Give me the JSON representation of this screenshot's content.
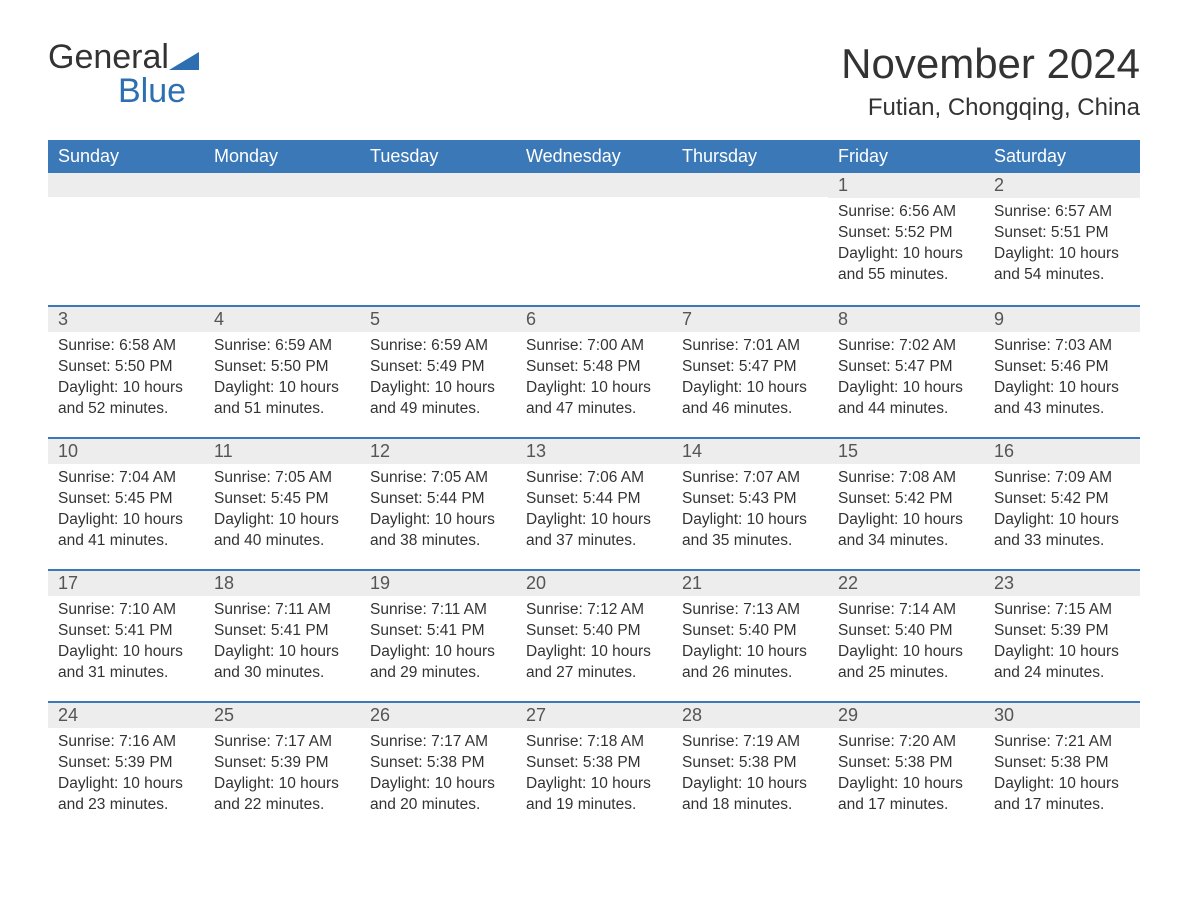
{
  "logo": {
    "word1": "General",
    "word2": "Blue"
  },
  "title": "November 2024",
  "location": "Futian, Chongqing, China",
  "colors": {
    "header_bg": "#3a78b7",
    "header_text": "#ffffff",
    "daynum_bg": "#ededed",
    "row_border": "#3a78b7",
    "body_text": "#333333",
    "logo_blue": "#2d6fb0"
  },
  "columns": [
    "Sunday",
    "Monday",
    "Tuesday",
    "Wednesday",
    "Thursday",
    "Friday",
    "Saturday"
  ],
  "labels": {
    "sunrise": "Sunrise",
    "sunset": "Sunset",
    "daylight": "Daylight"
  },
  "weeks": [
    [
      null,
      null,
      null,
      null,
      null,
      {
        "n": 1,
        "sunrise": "6:56 AM",
        "sunset": "5:52 PM",
        "dl_h": 10,
        "dl_m": 55
      },
      {
        "n": 2,
        "sunrise": "6:57 AM",
        "sunset": "5:51 PM",
        "dl_h": 10,
        "dl_m": 54
      }
    ],
    [
      {
        "n": 3,
        "sunrise": "6:58 AM",
        "sunset": "5:50 PM",
        "dl_h": 10,
        "dl_m": 52
      },
      {
        "n": 4,
        "sunrise": "6:59 AM",
        "sunset": "5:50 PM",
        "dl_h": 10,
        "dl_m": 51
      },
      {
        "n": 5,
        "sunrise": "6:59 AM",
        "sunset": "5:49 PM",
        "dl_h": 10,
        "dl_m": 49
      },
      {
        "n": 6,
        "sunrise": "7:00 AM",
        "sunset": "5:48 PM",
        "dl_h": 10,
        "dl_m": 47
      },
      {
        "n": 7,
        "sunrise": "7:01 AM",
        "sunset": "5:47 PM",
        "dl_h": 10,
        "dl_m": 46
      },
      {
        "n": 8,
        "sunrise": "7:02 AM",
        "sunset": "5:47 PM",
        "dl_h": 10,
        "dl_m": 44
      },
      {
        "n": 9,
        "sunrise": "7:03 AM",
        "sunset": "5:46 PM",
        "dl_h": 10,
        "dl_m": 43
      }
    ],
    [
      {
        "n": 10,
        "sunrise": "7:04 AM",
        "sunset": "5:45 PM",
        "dl_h": 10,
        "dl_m": 41
      },
      {
        "n": 11,
        "sunrise": "7:05 AM",
        "sunset": "5:45 PM",
        "dl_h": 10,
        "dl_m": 40
      },
      {
        "n": 12,
        "sunrise": "7:05 AM",
        "sunset": "5:44 PM",
        "dl_h": 10,
        "dl_m": 38
      },
      {
        "n": 13,
        "sunrise": "7:06 AM",
        "sunset": "5:44 PM",
        "dl_h": 10,
        "dl_m": 37
      },
      {
        "n": 14,
        "sunrise": "7:07 AM",
        "sunset": "5:43 PM",
        "dl_h": 10,
        "dl_m": 35
      },
      {
        "n": 15,
        "sunrise": "7:08 AM",
        "sunset": "5:42 PM",
        "dl_h": 10,
        "dl_m": 34
      },
      {
        "n": 16,
        "sunrise": "7:09 AM",
        "sunset": "5:42 PM",
        "dl_h": 10,
        "dl_m": 33
      }
    ],
    [
      {
        "n": 17,
        "sunrise": "7:10 AM",
        "sunset": "5:41 PM",
        "dl_h": 10,
        "dl_m": 31
      },
      {
        "n": 18,
        "sunrise": "7:11 AM",
        "sunset": "5:41 PM",
        "dl_h": 10,
        "dl_m": 30
      },
      {
        "n": 19,
        "sunrise": "7:11 AM",
        "sunset": "5:41 PM",
        "dl_h": 10,
        "dl_m": 29
      },
      {
        "n": 20,
        "sunrise": "7:12 AM",
        "sunset": "5:40 PM",
        "dl_h": 10,
        "dl_m": 27
      },
      {
        "n": 21,
        "sunrise": "7:13 AM",
        "sunset": "5:40 PM",
        "dl_h": 10,
        "dl_m": 26
      },
      {
        "n": 22,
        "sunrise": "7:14 AM",
        "sunset": "5:40 PM",
        "dl_h": 10,
        "dl_m": 25
      },
      {
        "n": 23,
        "sunrise": "7:15 AM",
        "sunset": "5:39 PM",
        "dl_h": 10,
        "dl_m": 24
      }
    ],
    [
      {
        "n": 24,
        "sunrise": "7:16 AM",
        "sunset": "5:39 PM",
        "dl_h": 10,
        "dl_m": 23
      },
      {
        "n": 25,
        "sunrise": "7:17 AM",
        "sunset": "5:39 PM",
        "dl_h": 10,
        "dl_m": 22
      },
      {
        "n": 26,
        "sunrise": "7:17 AM",
        "sunset": "5:38 PM",
        "dl_h": 10,
        "dl_m": 20
      },
      {
        "n": 27,
        "sunrise": "7:18 AM",
        "sunset": "5:38 PM",
        "dl_h": 10,
        "dl_m": 19
      },
      {
        "n": 28,
        "sunrise": "7:19 AM",
        "sunset": "5:38 PM",
        "dl_h": 10,
        "dl_m": 18
      },
      {
        "n": 29,
        "sunrise": "7:20 AM",
        "sunset": "5:38 PM",
        "dl_h": 10,
        "dl_m": 17
      },
      {
        "n": 30,
        "sunrise": "7:21 AM",
        "sunset": "5:38 PM",
        "dl_h": 10,
        "dl_m": 17
      }
    ]
  ]
}
